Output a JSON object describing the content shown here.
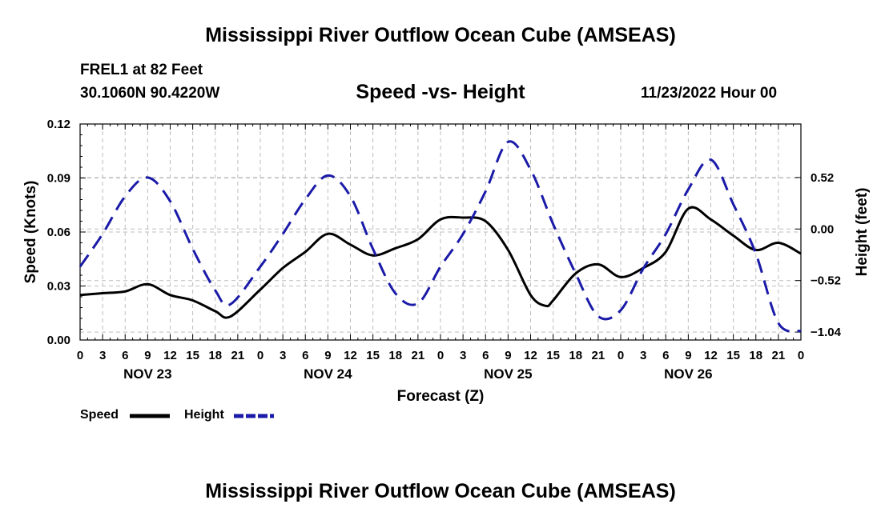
{
  "header": {
    "title": "Mississippi River Outflow Ocean Cube (AMSEAS)",
    "station": "FREL1 at 82 Feet",
    "coordinates": "30.1060N  90.4220W",
    "timestamp": "11/23/2022 Hour 00",
    "footer_title": "Mississippi River Outflow Ocean Cube (AMSEAS)"
  },
  "chart_data": {
    "type": "line",
    "title": "Speed -vs- Height",
    "xlabel": "Forecast (Z)",
    "ylabel": "Speed (Knots)",
    "y2label": "Height (feet)",
    "grid": true,
    "x_hours_range": [
      0,
      96
    ],
    "x_tick_step_hours": 3,
    "x_tick_labels": [
      "0",
      "3",
      "6",
      "9",
      "12",
      "15",
      "18",
      "21",
      "0",
      "3",
      "6",
      "9",
      "12",
      "15",
      "18",
      "21",
      "0",
      "3",
      "6",
      "9",
      "12",
      "15",
      "18",
      "21",
      "0",
      "3",
      "6",
      "9",
      "12",
      "15",
      "18",
      "21",
      "0"
    ],
    "day_labels": [
      {
        "label": "NOV 23",
        "hour": 9
      },
      {
        "label": "NOV 24",
        "hour": 33
      },
      {
        "label": "NOV 25",
        "hour": 57
      },
      {
        "label": "NOV 26",
        "hour": 81
      }
    ],
    "ylim": [
      0,
      0.12
    ],
    "y_ticks": [
      0.0,
      0.03,
      0.06,
      0.09,
      0.12
    ],
    "y_tick_labels": [
      "0.00",
      "0.03",
      "0.06",
      "0.09",
      "0.12"
    ],
    "y2lim": [
      -1.12,
      1.06
    ],
    "y2_ticks": [
      -1.04,
      -0.52,
      0.0,
      0.52
    ],
    "y2_tick_labels": [
      "−1.04",
      "−0.52",
      "0.00",
      "0.52"
    ],
    "series": [
      {
        "name": "Speed",
        "axis": "left",
        "color": "#000000",
        "style": "solid",
        "x": [
          0,
          3,
          6,
          9,
          12,
          15,
          18,
          20,
          24,
          27,
          30,
          33,
          36,
          39,
          42,
          45,
          48,
          51,
          54,
          57,
          60,
          62,
          63,
          66,
          69,
          72,
          75,
          78,
          81,
          84,
          87,
          90,
          93,
          96
        ],
        "values": [
          0.025,
          0.026,
          0.027,
          0.031,
          0.025,
          0.022,
          0.016,
          0.013,
          0.028,
          0.04,
          0.049,
          0.059,
          0.053,
          0.047,
          0.051,
          0.056,
          0.067,
          0.068,
          0.066,
          0.05,
          0.025,
          0.019,
          0.022,
          0.037,
          0.042,
          0.035,
          0.04,
          0.049,
          0.073,
          0.067,
          0.058,
          0.05,
          0.054,
          0.048
        ]
      },
      {
        "name": "Height",
        "axis": "right",
        "color": "#1a1aa8",
        "style": "dashed",
        "x": [
          0,
          3,
          6,
          9,
          12,
          15,
          18,
          20,
          24,
          27,
          30,
          33,
          36,
          39,
          42,
          45,
          48,
          51,
          54,
          57,
          60,
          63,
          66,
          69,
          72,
          75,
          78,
          81,
          84,
          87,
          90,
          93,
          96
        ],
        "values": [
          -0.38,
          -0.05,
          0.33,
          0.52,
          0.28,
          -0.2,
          -0.62,
          -0.76,
          -0.38,
          -0.05,
          0.3,
          0.54,
          0.33,
          -0.2,
          -0.65,
          -0.75,
          -0.38,
          -0.05,
          0.38,
          0.88,
          0.6,
          0.05,
          -0.45,
          -0.88,
          -0.82,
          -0.4,
          -0.05,
          0.4,
          0.7,
          0.25,
          -0.25,
          -0.95,
          -1.03
        ]
      }
    ],
    "legend": [
      {
        "label": "Speed",
        "color": "#000000",
        "style": "solid"
      },
      {
        "label": "Height",
        "color": "#1a1aa8",
        "style": "dashed"
      }
    ]
  }
}
